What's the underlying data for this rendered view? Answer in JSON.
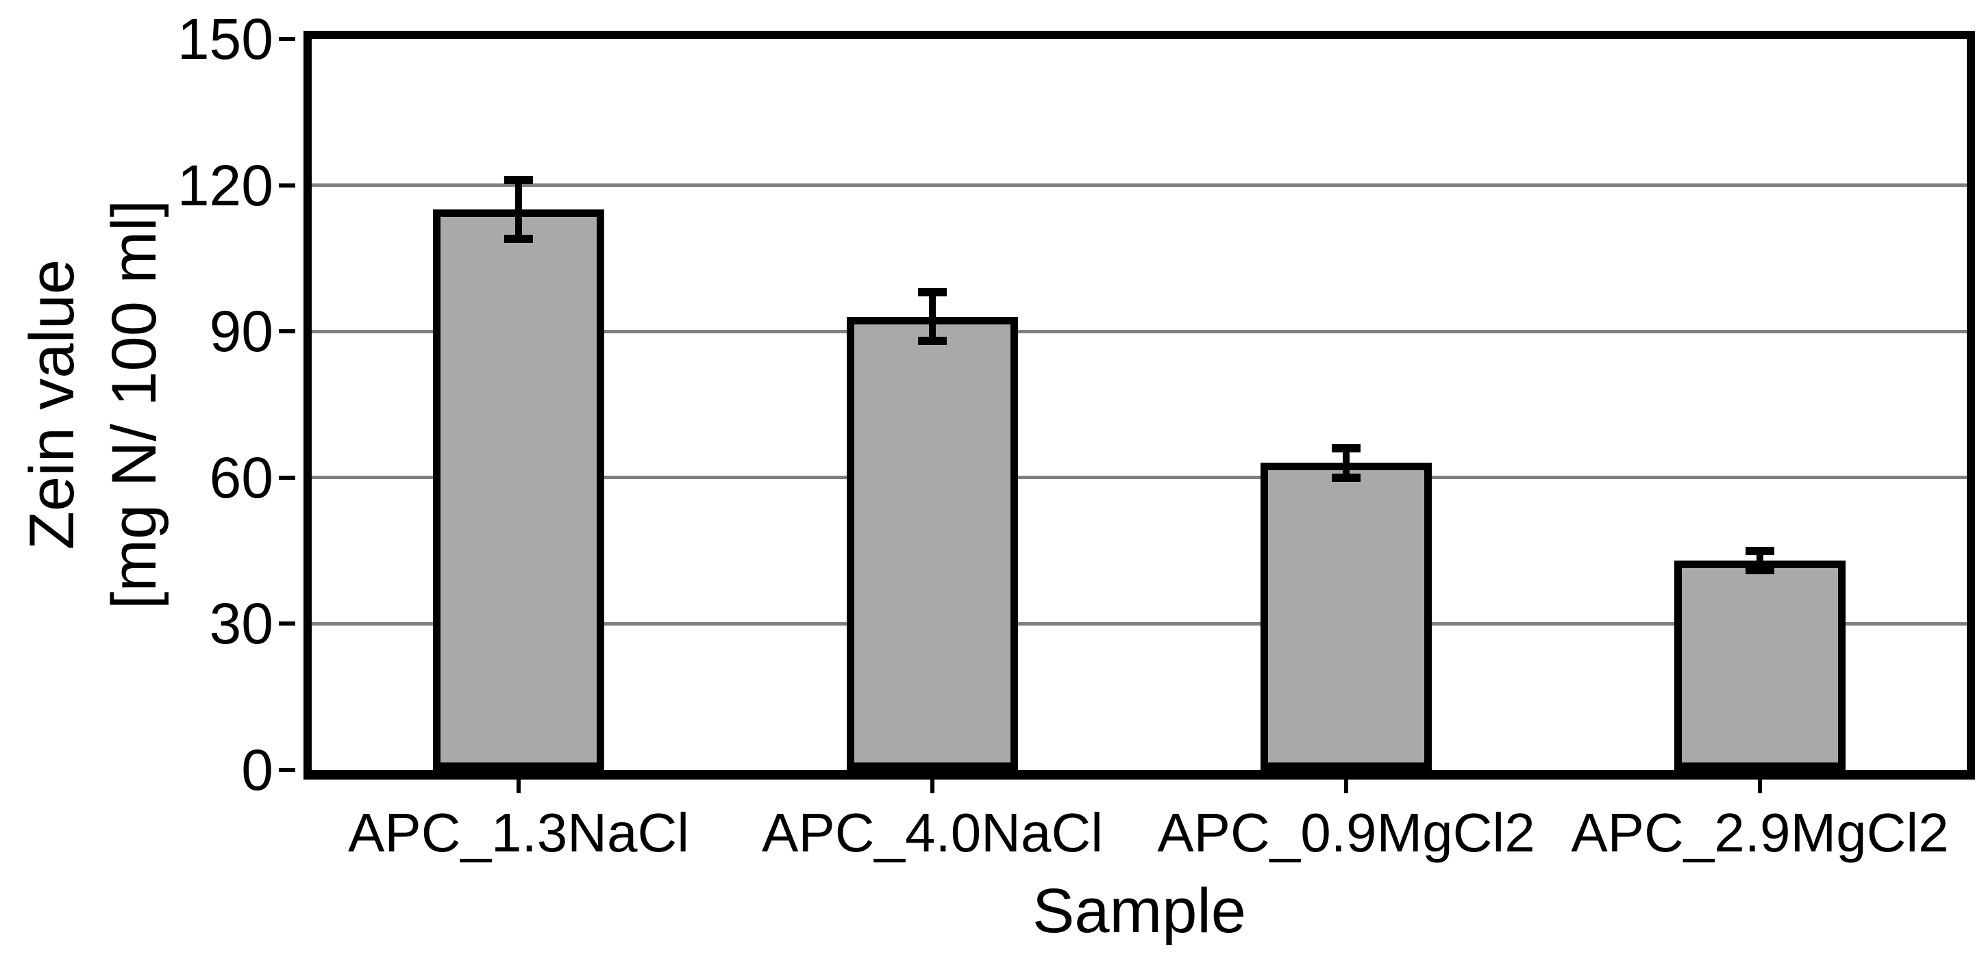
{
  "chart_data": {
    "type": "bar",
    "title": "",
    "categories": [
      "APC_1.3NaCl",
      "APC_4.0NaCl",
      "APC_0.9MgCl2",
      "APC_2.9MgCl2"
    ],
    "values": [
      115,
      93,
      63,
      43
    ],
    "error_bars": [
      6,
      5,
      3,
      2
    ],
    "xlabel": "Sample",
    "ylabel_line1": "Zein value",
    "ylabel_line2": "[mg N/ 100 ml]",
    "ylim": [
      0,
      150
    ],
    "yticks": [
      0,
      30,
      60,
      90,
      120,
      150
    ],
    "gridlines_at": [
      30,
      60,
      90,
      120
    ],
    "grid": true,
    "legend": false,
    "colors": {
      "bar_fill": "#a9a9a9",
      "bar_border": "#000000",
      "gridline": "#808080",
      "axis": "#000000",
      "background": "#ffffff",
      "text": "#000000"
    }
  }
}
